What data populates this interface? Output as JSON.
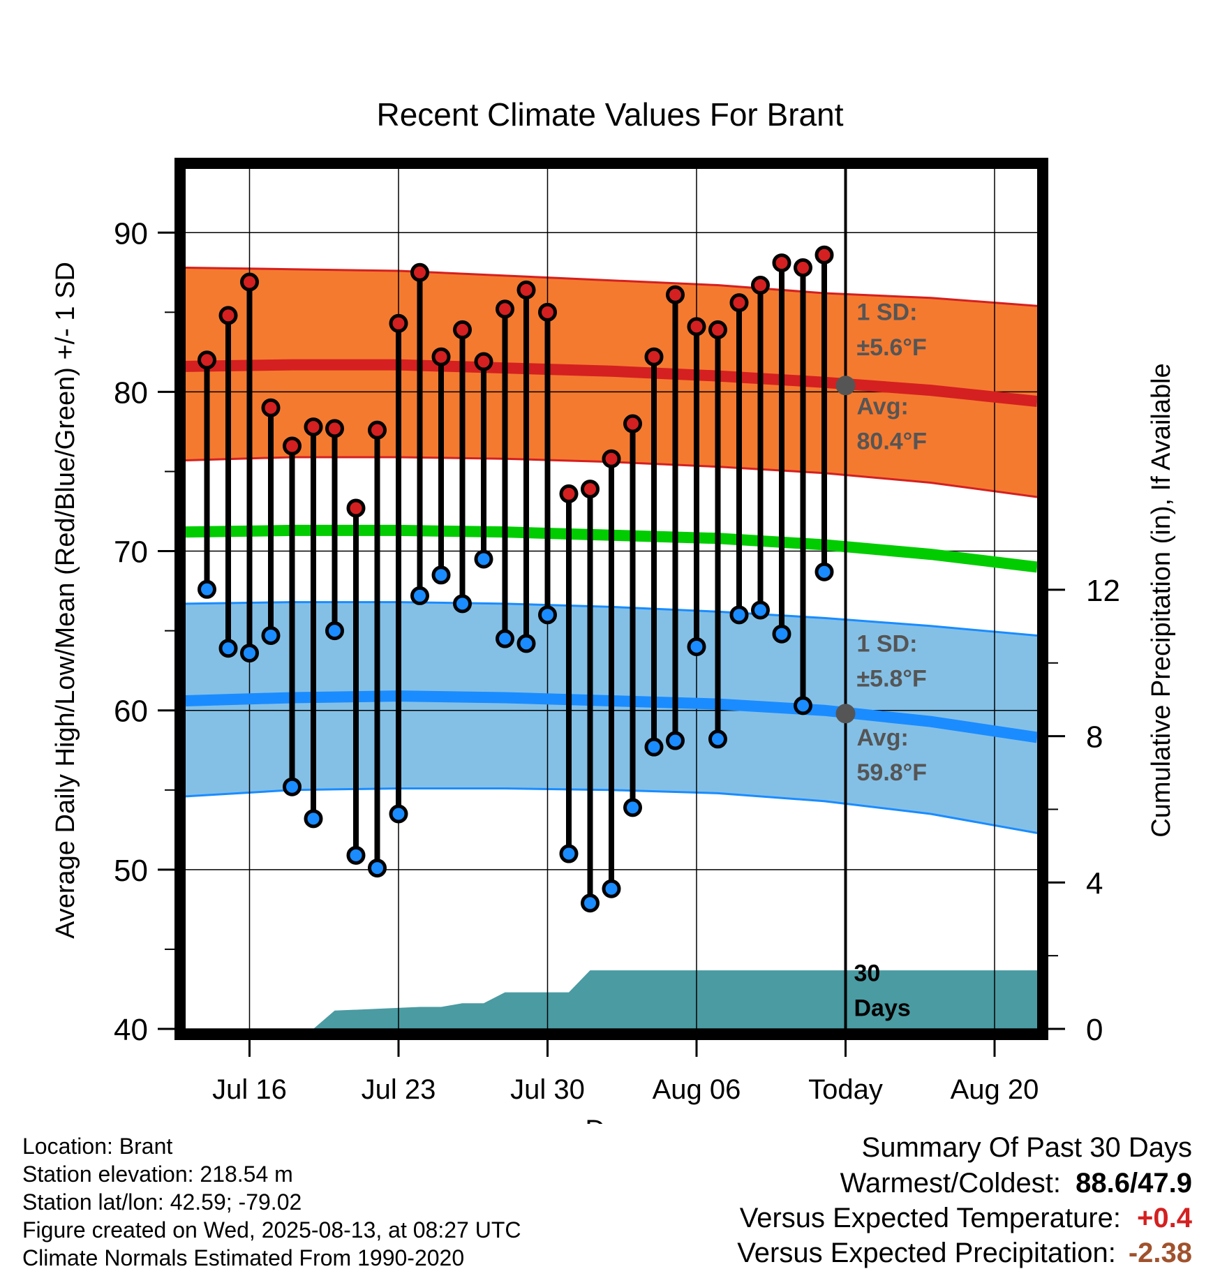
{
  "chart_data": {
    "type": "line",
    "title": "Recent Climate Values For Brant",
    "xlabel": "Day",
    "ylabel": "Average Daily High/Low/Mean (Red/Blue/Green) +/- 1 SD",
    "ylabel_right": "Cumulative Precipitation (in), If Available",
    "ylim": [
      40,
      94
    ],
    "ylim_right": [
      0,
      23.5
    ],
    "y_ticks": [
      40,
      50,
      60,
      70,
      80,
      90
    ],
    "y_ticks_right": [
      0,
      4,
      8,
      12
    ],
    "x_tick_labels": [
      "Jul 16",
      "Jul 23",
      "Jul 30",
      "Aug 06",
      "Today",
      "Aug 20"
    ],
    "x_range": [
      "2025-07-13",
      "2025-08-22"
    ],
    "today": "2025-08-13",
    "grid": true,
    "daily_dates": [
      "2025-07-14",
      "2025-07-15",
      "2025-07-16",
      "2025-07-17",
      "2025-07-18",
      "2025-07-19",
      "2025-07-20",
      "2025-07-21",
      "2025-07-22",
      "2025-07-23",
      "2025-07-24",
      "2025-07-25",
      "2025-07-26",
      "2025-07-27",
      "2025-07-28",
      "2025-07-29",
      "2025-07-30",
      "2025-07-31",
      "2025-08-01",
      "2025-08-02",
      "2025-08-03",
      "2025-08-04",
      "2025-08-05",
      "2025-08-06",
      "2025-08-07",
      "2025-08-08",
      "2025-08-09",
      "2025-08-10",
      "2025-08-11",
      "2025-08-12"
    ],
    "series": [
      {
        "name": "High",
        "color": "#d42020",
        "values": [
          82.0,
          84.8,
          86.9,
          79.0,
          76.6,
          77.8,
          77.7,
          72.7,
          77.6,
          84.3,
          87.5,
          82.2,
          83.9,
          81.9,
          85.2,
          86.4,
          85.0,
          73.6,
          73.9,
          75.8,
          78.0,
          82.2,
          86.1,
          84.1,
          83.9,
          85.6,
          86.7,
          88.1,
          87.8,
          88.6
        ]
      },
      {
        "name": "Low",
        "color": "#1a8cff",
        "values": [
          67.6,
          63.9,
          63.6,
          64.7,
          55.2,
          53.2,
          65.0,
          50.9,
          50.1,
          53.5,
          67.2,
          68.5,
          66.7,
          69.5,
          64.5,
          64.2,
          66.0,
          51.0,
          47.9,
          48.8,
          53.9,
          57.7,
          58.1,
          64.0,
          58.2,
          66.0,
          66.3,
          64.8,
          60.3,
          68.7
        ]
      }
    ],
    "normals": {
      "dates": [
        "2025-07-13",
        "2025-07-18",
        "2025-07-23",
        "2025-07-28",
        "2025-08-02",
        "2025-08-07",
        "2025-08-12",
        "2025-08-17",
        "2025-08-22"
      ],
      "high_avg": [
        81.6,
        81.7,
        81.7,
        81.5,
        81.3,
        81.0,
        80.6,
        80.1,
        79.4
      ],
      "high_upper": [
        87.8,
        87.7,
        87.6,
        87.3,
        87.0,
        86.7,
        86.2,
        85.9,
        85.4
      ],
      "high_lower": [
        75.7,
        75.9,
        75.9,
        75.8,
        75.6,
        75.3,
        74.9,
        74.3,
        73.4
      ],
      "mean_avg": [
        71.2,
        71.3,
        71.3,
        71.2,
        71.0,
        70.8,
        70.4,
        69.8,
        69.0
      ],
      "low_avg": [
        60.6,
        60.8,
        60.9,
        60.8,
        60.6,
        60.4,
        60.0,
        59.3,
        58.3
      ],
      "low_upper": [
        66.7,
        66.8,
        66.8,
        66.7,
        66.5,
        66.2,
        65.8,
        65.3,
        64.7
      ],
      "low_lower": [
        54.6,
        55.0,
        55.1,
        55.1,
        55.0,
        54.8,
        54.3,
        53.5,
        52.3
      ]
    },
    "today_high_avg": 80.4,
    "today_low_avg": 59.8,
    "precip": {
      "dates": [
        "2025-07-13",
        "2025-07-19",
        "2025-07-20",
        "2025-07-24",
        "2025-07-25",
        "2025-07-26",
        "2025-07-27",
        "2025-07-28",
        "2025-07-31",
        "2025-08-01",
        "2025-08-22"
      ],
      "values": [
        0,
        0,
        0.5,
        0.6,
        0.6,
        0.7,
        0.7,
        1.0,
        1.0,
        1.6,
        1.6
      ]
    },
    "colors": {
      "high_band": "#f47a30",
      "high_line": "#d42020",
      "low_band": "#84c0e6",
      "low_line": "#1a8cff",
      "mean_line": "#00cc00",
      "precip": "#4a9ba2",
      "marker_high": "#d42020",
      "marker_low": "#1a8cff"
    },
    "annotations": {
      "high_sd_label": "1 SD:",
      "high_sd_value": "±5.6°F",
      "high_avg_label": "Avg:",
      "high_avg_value": "80.4°F",
      "low_sd_label": "1 SD:",
      "low_sd_value": "±5.8°F",
      "low_avg_label": "Avg:",
      "low_avg_value": "59.8°F",
      "window_count": "30",
      "window_unit": "Days"
    }
  },
  "footer": {
    "location": "Location: Brant",
    "elevation": "Station elevation: 218.54 m",
    "latlon": "Station lat/lon: 42.59; -79.02",
    "created": "Figure created on Wed, 2025-08-13, at 08:27 UTC",
    "normals": "Climate Normals Estimated From 1990-2020"
  },
  "summary": {
    "title": "Summary Of Past 30 Days",
    "warm_cold_label": "Warmest/Coldest:",
    "warm_cold_value": "88.6/47.9",
    "temp_label": "Versus Expected Temperature:",
    "temp_value": "+0.4",
    "temp_color": "#d42020",
    "precip_label": "Versus Expected Precipitation:",
    "precip_value": "-2.38",
    "precip_color": "#a0522d"
  }
}
